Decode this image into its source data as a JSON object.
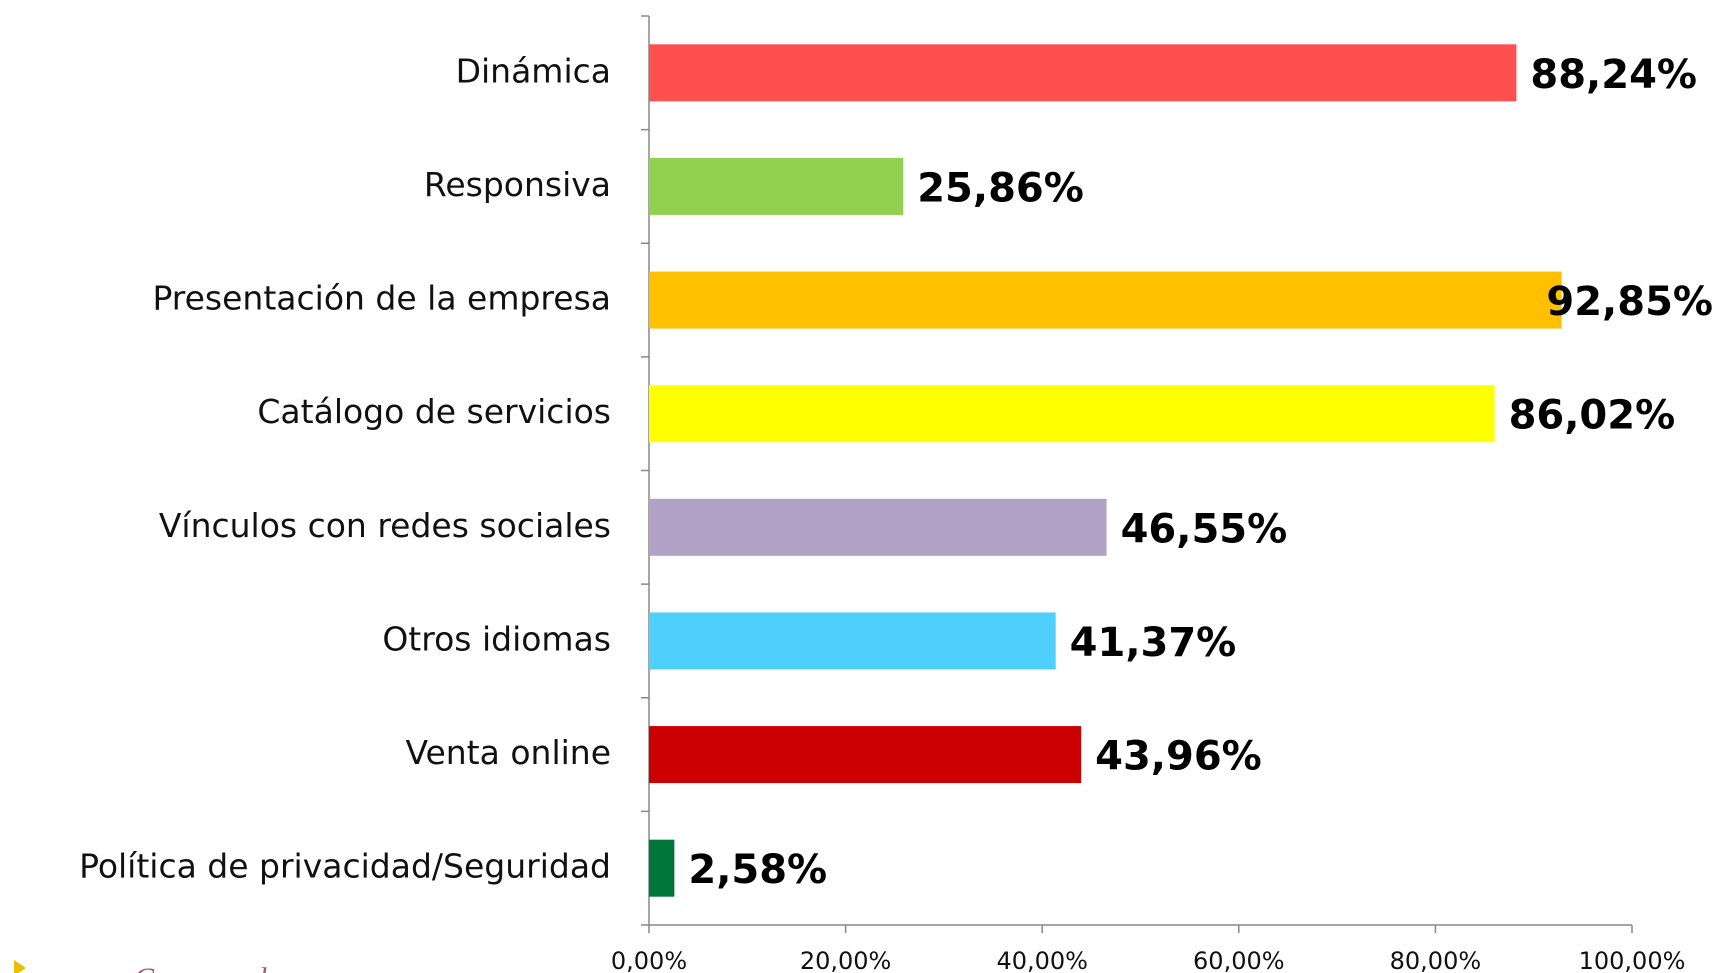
{
  "chart_data": {
    "type": "barh",
    "categories": [
      "Dinámica",
      "Responsiva",
      "Presentación de la empresa",
      "Catálogo de servicios",
      "Vínculos con redes sociales",
      "Otros idiomas",
      "Venta online",
      "Política de privacidad/Seguridad"
    ],
    "values": [
      88.24,
      25.86,
      92.85,
      86.02,
      46.55,
      41.37,
      43.96,
      2.58
    ],
    "value_labels": [
      "88,24%",
      "25,86%",
      "92,85%",
      "86,02%",
      "46,55%",
      "41,37%",
      "43,96%",
      "2,58%"
    ],
    "colors": [
      "#ff5050",
      "#92d050",
      "#ffc000",
      "#ffff00",
      "#b3a2c7",
      "#4fd0fc",
      "#cc0000",
      "#00763a"
    ],
    "xlim": [
      0,
      100
    ],
    "xticks": [
      {
        "value": 0,
        "label": "0,00%"
      },
      {
        "value": 20,
        "label": "20,00%"
      },
      {
        "value": 40,
        "label": "40,00%"
      },
      {
        "value": 60,
        "label": "60,00%"
      },
      {
        "value": 80,
        "label": "80,00%"
      },
      {
        "value": 100,
        "label": "100,00%"
      }
    ],
    "annotation": "Compras de"
  }
}
